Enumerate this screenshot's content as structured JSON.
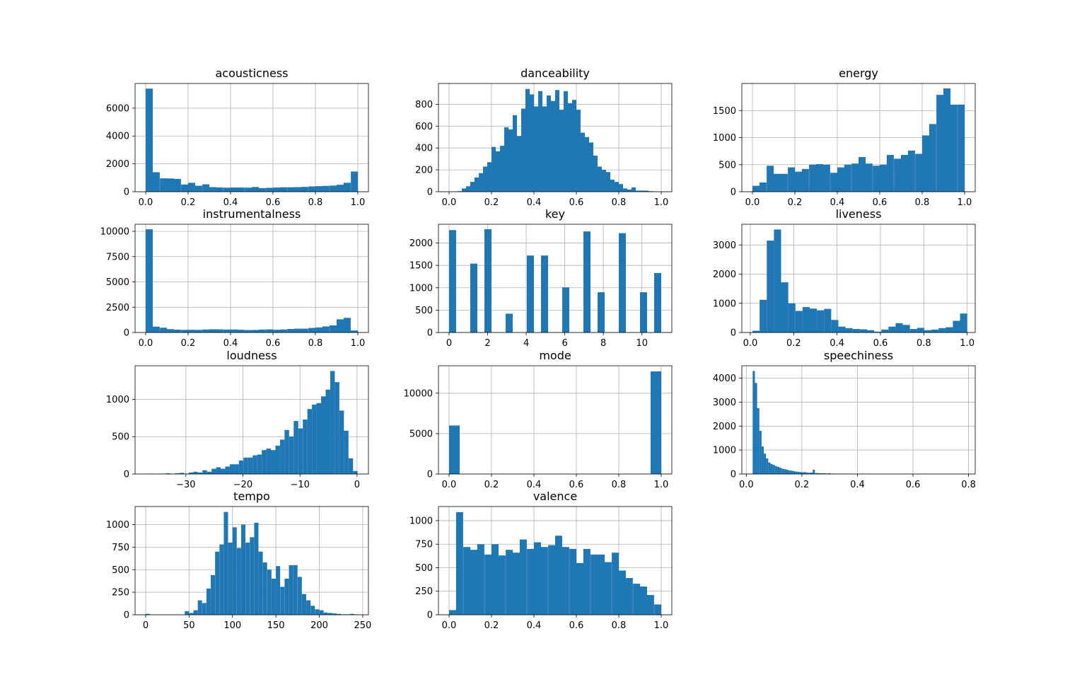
{
  "chart_data": [
    {
      "type": "bar",
      "title": "acousticness",
      "x": [
        0.0,
        0.033,
        0.067,
        0.1,
        0.133,
        0.167,
        0.2,
        0.233,
        0.267,
        0.3,
        0.333,
        0.367,
        0.4,
        0.433,
        0.467,
        0.5,
        0.533,
        0.567,
        0.6,
        0.633,
        0.667,
        0.7,
        0.733,
        0.767,
        0.8,
        0.833,
        0.867,
        0.9,
        0.933,
        0.967
      ],
      "bin_width": 0.0333,
      "values": [
        7400,
        1400,
        960,
        950,
        920,
        520,
        640,
        430,
        530,
        330,
        310,
        290,
        300,
        300,
        290,
        340,
        260,
        280,
        300,
        320,
        320,
        330,
        350,
        380,
        400,
        420,
        440,
        500,
        640,
        1450
      ],
      "xlim": [
        -0.05,
        1.05
      ],
      "ylim": [
        0,
        7770
      ],
      "xticks": [
        0.0,
        0.2,
        0.4,
        0.6,
        0.8,
        1.0
      ],
      "xtick_labels": [
        "0.0",
        "0.2",
        "0.4",
        "0.6",
        "0.8",
        "1.0"
      ],
      "yticks": [
        0,
        2000,
        4000,
        6000
      ],
      "ytick_labels": [
        "0",
        "2000",
        "4000",
        "6000"
      ]
    },
    {
      "type": "bar",
      "title": "danceability",
      "x": [
        0.04,
        0.06,
        0.08,
        0.1,
        0.12,
        0.14,
        0.16,
        0.18,
        0.2,
        0.22,
        0.24,
        0.26,
        0.28,
        0.3,
        0.32,
        0.34,
        0.36,
        0.38,
        0.4,
        0.42,
        0.44,
        0.46,
        0.48,
        0.5,
        0.52,
        0.54,
        0.56,
        0.58,
        0.6,
        0.62,
        0.64,
        0.66,
        0.68,
        0.7,
        0.72,
        0.74,
        0.76,
        0.78,
        0.8,
        0.82,
        0.84,
        0.86,
        0.88,
        0.9,
        0.92,
        0.94,
        0.96
      ],
      "bin_width": 0.02,
      "values": [
        5,
        30,
        50,
        90,
        130,
        170,
        230,
        270,
        410,
        370,
        420,
        590,
        570,
        700,
        510,
        760,
        940,
        890,
        780,
        920,
        780,
        880,
        830,
        930,
        750,
        920,
        810,
        840,
        750,
        540,
        500,
        450,
        330,
        230,
        200,
        180,
        110,
        90,
        70,
        30,
        20,
        40,
        10,
        10,
        10,
        5,
        3
      ],
      "xlim": [
        -0.05,
        1.05
      ],
      "ylim": [
        0,
        990
      ],
      "xticks": [
        0.0,
        0.2,
        0.4,
        0.6,
        0.8,
        1.0
      ],
      "xtick_labels": [
        "0.0",
        "0.2",
        "0.4",
        "0.6",
        "0.8",
        "1.0"
      ],
      "yticks": [
        0,
        200,
        400,
        600,
        800
      ],
      "ytick_labels": [
        "0",
        "200",
        "400",
        "600",
        "800"
      ]
    },
    {
      "type": "bar",
      "title": "energy",
      "x": [
        0.0,
        0.033,
        0.067,
        0.1,
        0.133,
        0.167,
        0.2,
        0.233,
        0.267,
        0.3,
        0.333,
        0.367,
        0.4,
        0.433,
        0.467,
        0.5,
        0.533,
        0.567,
        0.6,
        0.633,
        0.667,
        0.7,
        0.733,
        0.767,
        0.8,
        0.833,
        0.867,
        0.9,
        0.933,
        0.967
      ],
      "bin_width": 0.0333,
      "values": [
        110,
        170,
        480,
        330,
        330,
        450,
        370,
        420,
        500,
        510,
        500,
        350,
        450,
        500,
        520,
        640,
        520,
        480,
        500,
        680,
        610,
        680,
        760,
        700,
        1040,
        1250,
        1790,
        1910,
        1610,
        1610
      ],
      "xlim": [
        -0.05,
        1.05
      ],
      "ylim": [
        0,
        2000
      ],
      "xticks": [
        0.0,
        0.2,
        0.4,
        0.6,
        0.8,
        1.0
      ],
      "xtick_labels": [
        "0.0",
        "0.2",
        "0.4",
        "0.6",
        "0.8",
        "1.0"
      ],
      "yticks": [
        0,
        500,
        1000,
        1500
      ],
      "ytick_labels": [
        "0",
        "500",
        "1000",
        "1500"
      ]
    },
    {
      "type": "bar",
      "title": "instrumentalness",
      "x": [
        0.0,
        0.033,
        0.067,
        0.1,
        0.133,
        0.167,
        0.2,
        0.233,
        0.267,
        0.3,
        0.333,
        0.367,
        0.4,
        0.433,
        0.467,
        0.5,
        0.533,
        0.567,
        0.6,
        0.633,
        0.667,
        0.7,
        0.733,
        0.767,
        0.8,
        0.833,
        0.867,
        0.9,
        0.933,
        0.967
      ],
      "bin_width": 0.0333,
      "values": [
        10200,
        580,
        470,
        330,
        280,
        260,
        270,
        260,
        300,
        320,
        310,
        290,
        300,
        270,
        240,
        250,
        290,
        310,
        270,
        300,
        350,
        380,
        380,
        450,
        500,
        600,
        700,
        1300,
        1450,
        200
      ],
      "xlim": [
        -0.05,
        1.05
      ],
      "ylim": [
        0,
        10700
      ],
      "xticks": [
        0.0,
        0.2,
        0.4,
        0.6,
        0.8,
        1.0
      ],
      "xtick_labels": [
        "0.0",
        "0.2",
        "0.4",
        "0.6",
        "0.8",
        "1.0"
      ],
      "yticks": [
        0,
        2500,
        5000,
        7500,
        10000
      ],
      "ytick_labels": [
        "0",
        "2500",
        "5000",
        "7500",
        "10000"
      ]
    },
    {
      "type": "bar",
      "title": "key",
      "x": [
        0.0,
        0.367,
        0.733,
        1.1,
        1.467,
        1.833,
        2.2,
        2.567,
        2.933,
        3.3,
        3.667,
        4.033,
        4.4,
        4.767,
        5.133,
        5.5,
        5.867,
        6.233,
        6.6,
        6.967,
        7.333,
        7.7,
        8.067,
        8.433,
        8.8,
        9.167,
        9.533,
        9.9,
        10.267,
        10.633
      ],
      "bin_width": 0.3667,
      "values": [
        2290,
        0,
        0,
        1540,
        0,
        2310,
        0,
        0,
        420,
        0,
        0,
        1720,
        0,
        1720,
        0,
        0,
        1010,
        0,
        0,
        2260,
        0,
        900,
        0,
        0,
        2220,
        0,
        0,
        900,
        0,
        1330
      ],
      "xlim": [
        -0.55,
        11.55
      ],
      "ylim": [
        0,
        2420
      ],
      "xticks": [
        0,
        2,
        4,
        6,
        8,
        10
      ],
      "xtick_labels": [
        "0",
        "2",
        "4",
        "6",
        "8",
        "10"
      ],
      "yticks": [
        0,
        500,
        1000,
        1500,
        2000
      ],
      "ytick_labels": [
        "0",
        "500",
        "1000",
        "1500",
        "2000"
      ]
    },
    {
      "type": "bar",
      "title": "liveness",
      "x": [
        0.01,
        0.043,
        0.076,
        0.109,
        0.142,
        0.175,
        0.208,
        0.241,
        0.274,
        0.307,
        0.34,
        0.373,
        0.406,
        0.439,
        0.472,
        0.505,
        0.538,
        0.571,
        0.604,
        0.637,
        0.67,
        0.703,
        0.736,
        0.769,
        0.802,
        0.835,
        0.868,
        0.901,
        0.934,
        0.967
      ],
      "bin_width": 0.033,
      "values": [
        60,
        1120,
        3150,
        3530,
        1720,
        1000,
        740,
        870,
        820,
        760,
        810,
        430,
        200,
        150,
        120,
        110,
        80,
        30,
        100,
        200,
        320,
        260,
        120,
        160,
        80,
        100,
        150,
        180,
        400,
        650
      ],
      "xlim": [
        -0.039,
        1.037
      ],
      "ylim": [
        0,
        3710
      ],
      "xticks": [
        0.0,
        0.2,
        0.4,
        0.6,
        0.8,
        1.0
      ],
      "xtick_labels": [
        "0.0",
        "0.2",
        "0.4",
        "0.6",
        "0.8",
        "1.0"
      ],
      "yticks": [
        0,
        1000,
        2000,
        3000
      ],
      "ytick_labels": [
        "0",
        "1000",
        "2000",
        "3000"
      ]
    },
    {
      "type": "bar",
      "title": "loudness",
      "x": [
        -37.1,
        -35.1,
        -34.3,
        -33.5,
        -32.7,
        -31.9,
        -31.1,
        -30.3,
        -29.5,
        -28.7,
        -27.9,
        -27.1,
        -26.3,
        -25.5,
        -24.7,
        -23.9,
        -23.1,
        -22.3,
        -21.5,
        -20.7,
        -19.9,
        -19.1,
        -18.3,
        -17.5,
        -16.7,
        -15.9,
        -15.1,
        -14.3,
        -13.5,
        -12.7,
        -11.9,
        -11.1,
        -10.3,
        -9.5,
        -8.7,
        -7.9,
        -7.1,
        -6.3,
        -5.5,
        -4.7,
        -3.9,
        -3.1,
        -2.3,
        -1.5,
        -0.7
      ],
      "bin_width": 0.8,
      "values": [
        5,
        0,
        5,
        10,
        0,
        10,
        15,
        5,
        20,
        30,
        20,
        50,
        30,
        70,
        90,
        70,
        100,
        130,
        130,
        180,
        220,
        220,
        250,
        260,
        320,
        340,
        320,
        380,
        460,
        590,
        500,
        710,
        610,
        730,
        870,
        930,
        950,
        1040,
        1130,
        1380,
        1230,
        850,
        580,
        210,
        40
      ],
      "xlim": [
        -38.9,
        2.0
      ],
      "ylim": [
        0,
        1450
      ],
      "xticks": [
        -30,
        -20,
        -10,
        0
      ],
      "xtick_labels": [
        "−30",
        "−20",
        "−10",
        "0"
      ],
      "yticks": [
        0,
        500,
        1000
      ],
      "ytick_labels": [
        "0",
        "500",
        "1000"
      ]
    },
    {
      "type": "bar",
      "title": "mode",
      "x": [
        0.0,
        0.95
      ],
      "bin_width": 0.05,
      "values": [
        6000,
        12700
      ],
      "xlim": [
        -0.05,
        1.05
      ],
      "ylim": [
        0,
        13400
      ],
      "xticks": [
        0.0,
        0.2,
        0.4,
        0.6,
        0.8,
        1.0
      ],
      "xtick_labels": [
        "0.0",
        "0.2",
        "0.4",
        "0.6",
        "0.8",
        "1.0"
      ],
      "yticks": [
        0,
        5000,
        10000
      ],
      "ytick_labels": [
        "0",
        "5000",
        "10000"
      ]
    },
    {
      "type": "bar",
      "title": "speechiness",
      "x": [
        0.023,
        0.031,
        0.039,
        0.047,
        0.055,
        0.063,
        0.071,
        0.079,
        0.087,
        0.095,
        0.103,
        0.111,
        0.119,
        0.127,
        0.135,
        0.143,
        0.151,
        0.159,
        0.167,
        0.175,
        0.183,
        0.191,
        0.199,
        0.207,
        0.215,
        0.223,
        0.231,
        0.239,
        0.247,
        0.255,
        0.263,
        0.271,
        0.279,
        0.287,
        0.295,
        0.303,
        0.311,
        0.319,
        0.327,
        0.335,
        0.343,
        0.351,
        0.359,
        0.367,
        0.375,
        0.383,
        0.391,
        0.399,
        0.407,
        0.415,
        0.423,
        0.431
      ],
      "bin_width": 0.008,
      "values": [
        4300,
        3800,
        2750,
        1800,
        1150,
        850,
        650,
        480,
        420,
        380,
        330,
        300,
        260,
        220,
        200,
        180,
        150,
        140,
        120,
        100,
        90,
        80,
        70,
        80,
        60,
        50,
        60,
        180,
        40,
        40,
        30,
        30,
        25,
        20,
        30,
        15,
        20,
        10,
        15,
        10,
        10,
        10,
        5,
        10,
        5,
        8,
        5,
        5,
        5,
        5,
        3,
        5
      ],
      "xlim": [
        -0.016,
        0.824
      ],
      "ylim": [
        0,
        4520
      ],
      "xticks": [
        0.0,
        0.2,
        0.4,
        0.6,
        0.8
      ],
      "xtick_labels": [
        "0.0",
        "0.2",
        "0.4",
        "0.6",
        "0.8"
      ],
      "yticks": [
        0,
        1000,
        2000,
        3000,
        4000
      ],
      "ytick_labels": [
        "0",
        "1000",
        "2000",
        "3000",
        "4000"
      ]
    },
    {
      "type": "bar",
      "title": "tempo",
      "x": [
        0,
        45,
        50,
        55,
        60,
        65,
        70,
        75,
        80,
        85,
        90,
        95,
        100,
        105,
        110,
        115,
        120,
        125,
        130,
        135,
        140,
        145,
        150,
        155,
        160,
        165,
        170,
        175,
        180,
        185,
        190,
        195,
        200,
        205,
        210,
        215,
        220,
        225,
        230,
        235,
        240
      ],
      "bin_width": 4.9,
      "values": [
        10,
        40,
        20,
        50,
        160,
        130,
        290,
        440,
        700,
        780,
        1140,
        800,
        970,
        740,
        1000,
        800,
        860,
        1020,
        700,
        580,
        500,
        400,
        540,
        310,
        400,
        550,
        550,
        420,
        230,
        160,
        100,
        60,
        50,
        25,
        20,
        15,
        10,
        5,
        5,
        10,
        5
      ],
      "xlim": [
        -12.2,
        256.6
      ],
      "ylim": [
        0,
        1200
      ],
      "xticks": [
        0,
        50,
        100,
        150,
        200,
        250
      ],
      "xtick_labels": [
        "0",
        "50",
        "100",
        "150",
        "200",
        "250"
      ],
      "yticks": [
        0,
        250,
        500,
        750,
        1000
      ],
      "ytick_labels": [
        "0",
        "250",
        "500",
        "750",
        "1000"
      ]
    },
    {
      "type": "bar",
      "title": "valence",
      "x": [
        0.0,
        0.033,
        0.067,
        0.1,
        0.133,
        0.167,
        0.2,
        0.233,
        0.267,
        0.3,
        0.333,
        0.367,
        0.4,
        0.433,
        0.467,
        0.5,
        0.533,
        0.567,
        0.6,
        0.633,
        0.667,
        0.7,
        0.733,
        0.767,
        0.8,
        0.833,
        0.867,
        0.9,
        0.933,
        0.967
      ],
      "bin_width": 0.0333,
      "values": [
        50,
        1090,
        720,
        690,
        750,
        640,
        750,
        630,
        690,
        660,
        800,
        700,
        770,
        720,
        740,
        840,
        720,
        700,
        550,
        700,
        640,
        640,
        560,
        660,
        470,
        390,
        330,
        300,
        210,
        110
      ],
      "xlim": [
        -0.05,
        1.05
      ],
      "ylim": [
        0,
        1150
      ],
      "xticks": [
        0.0,
        0.2,
        0.4,
        0.6,
        0.8,
        1.0
      ],
      "xtick_labels": [
        "0.0",
        "0.2",
        "0.4",
        "0.6",
        "0.8",
        "1.0"
      ],
      "yticks": [
        0,
        250,
        500,
        750,
        1000
      ],
      "ytick_labels": [
        "0",
        "250",
        "500",
        "750",
        "1000"
      ]
    }
  ]
}
